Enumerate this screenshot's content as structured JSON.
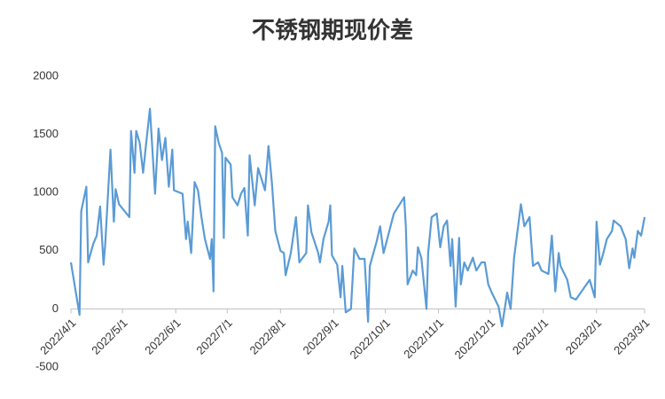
{
  "chart_data": {
    "type": "line",
    "title": "不锈钢期现价差",
    "x": [
      "2022/4/1",
      "2022/4/6",
      "2022/4/7",
      "2022/4/10",
      "2022/4/11",
      "2022/4/14",
      "2022/4/16",
      "2022/4/18",
      "2022/4/20",
      "2022/4/21",
      "2022/4/24",
      "2022/4/26",
      "2022/4/27",
      "2022/4/29",
      "2022/5/5",
      "2022/5/6",
      "2022/5/8",
      "2022/5/9",
      "2022/5/11",
      "2022/5/13",
      "2022/5/15",
      "2022/5/17",
      "2022/5/20",
      "2022/5/22",
      "2022/5/24",
      "2022/5/26",
      "2022/5/28",
      "2022/5/30",
      "2022/5/31",
      "2022/6/5",
      "2022/6/7",
      "2022/6/8",
      "2022/6/10",
      "2022/6/12",
      "2022/6/14",
      "2022/6/16",
      "2022/6/18",
      "2022/6/21",
      "2022/6/22",
      "2022/6/23",
      "2022/6/24",
      "2022/6/26",
      "2022/6/28",
      "2022/6/29",
      "2022/6/30",
      "2022/7/3",
      "2022/7/4",
      "2022/7/7",
      "2022/7/9",
      "2022/7/11",
      "2022/7/13",
      "2022/7/14",
      "2022/7/17",
      "2022/7/19",
      "2022/7/23",
      "2022/7/25",
      "2022/7/27",
      "2022/7/29",
      "2022/8/1",
      "2022/8/3",
      "2022/8/4",
      "2022/8/7",
      "2022/8/10",
      "2022/8/12",
      "2022/8/16",
      "2022/8/17",
      "2022/8/19",
      "2022/8/23",
      "2022/8/24",
      "2022/8/26",
      "2022/8/29",
      "2022/8/30",
      "2022/8/31",
      "2022/9/3",
      "2022/9/5",
      "2022/9/6",
      "2022/9/8",
      "2022/9/11",
      "2022/9/13",
      "2022/9/16",
      "2022/9/19",
      "2022/9/21",
      "2022/9/22",
      "2022/9/26",
      "2022/9/28",
      "2022/9/30",
      "2022/10/6",
      "2022/10/12",
      "2022/10/13",
      "2022/10/14",
      "2022/10/17",
      "2022/10/19",
      "2022/10/20",
      "2022/10/22",
      "2022/10/25",
      "2022/10/26",
      "2022/10/28",
      "2022/10/31",
      "2022/11/2",
      "2022/11/4",
      "2022/11/6",
      "2022/11/8",
      "2022/11/9",
      "2022/11/11",
      "2022/11/13",
      "2022/11/14",
      "2022/11/16",
      "2022/11/18",
      "2022/11/21",
      "2022/11/23",
      "2022/11/26",
      "2022/11/28",
      "2022/11/30",
      "2022/12/2",
      "2022/12/6",
      "2022/12/8",
      "2022/12/11",
      "2022/12/13",
      "2022/12/15",
      "2022/12/19",
      "2022/12/21",
      "2022/12/24",
      "2022/12/26",
      "2022/12/29",
      "2022/12/31",
      "2023/1/4",
      "2023/1/6",
      "2023/1/8",
      "2023/1/10",
      "2023/1/11",
      "2023/1/15",
      "2023/1/17",
      "2023/1/20",
      "2023/1/28",
      "2023/1/31",
      "2023/2/1",
      "2023/2/3",
      "2023/2/5",
      "2023/2/7",
      "2023/2/10",
      "2023/2/11",
      "2023/2/15",
      "2023/2/18",
      "2023/2/20",
      "2023/2/22",
      "2023/2/23",
      "2023/2/25",
      "2023/2/27",
      "2023/3/1"
    ],
    "series": [
      {
        "color": "#5b9bd5",
        "values": [
          400,
          -50,
          840,
          1050,
          400,
          560,
          630,
          880,
          380,
          560,
          1370,
          750,
          1030,
          900,
          790,
          1530,
          1170,
          1530,
          1430,
          1170,
          1450,
          1720,
          990,
          1550,
          1280,
          1470,
          1050,
          1370,
          1020,
          990,
          600,
          750,
          480,
          1090,
          1020,
          790,
          600,
          430,
          600,
          150,
          1570,
          1430,
          1340,
          610,
          1300,
          1240,
          960,
          890,
          990,
          1040,
          630,
          1320,
          890,
          1210,
          1020,
          1400,
          1090,
          670,
          500,
          480,
          290,
          480,
          790,
          400,
          480,
          890,
          660,
          480,
          400,
          600,
          750,
          890,
          460,
          380,
          100,
          370,
          -30,
          0,
          520,
          430,
          430,
          -110,
          370,
          580,
          710,
          480,
          820,
          960,
          710,
          210,
          330,
          290,
          530,
          440,
          0,
          480,
          790,
          820,
          530,
          710,
          760,
          370,
          600,
          20,
          610,
          210,
          400,
          330,
          440,
          330,
          400,
          400,
          210,
          140,
          20,
          -150,
          140,
          0,
          440,
          900,
          710,
          790,
          370,
          400,
          330,
          300,
          630,
          150,
          480,
          370,
          250,
          100,
          80,
          250,
          100,
          750,
          380,
          480,
          600,
          670,
          760,
          710,
          600,
          350,
          520,
          440,
          670,
          630,
          790
        ]
      }
    ],
    "xlim": [
      "2022/4/1",
      "2023/3/1"
    ],
    "xticks": [
      "2022/4/1",
      "2022/5/1",
      "2022/6/1",
      "2022/7/1",
      "2022/8/1",
      "2022/9/1",
      "2022/10/1",
      "2022/11/1",
      "2022/12/1",
      "2023/1/1",
      "2023/2/1",
      "2023/3/1"
    ],
    "ylim": [
      -500,
      2000
    ],
    "yticks": [
      2000,
      1500,
      1000,
      500,
      0,
      -500
    ],
    "grid": false
  }
}
